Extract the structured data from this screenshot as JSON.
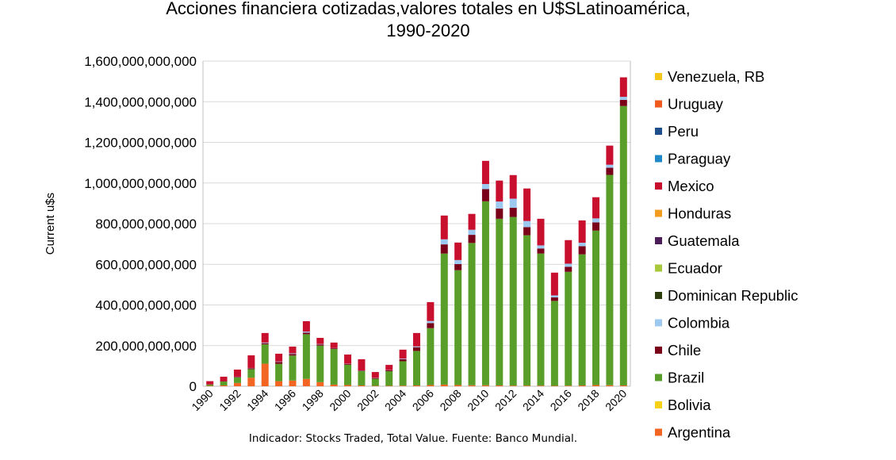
{
  "chart_data": {
    "type": "bar",
    "stacked": true,
    "title": "Acciones financiera cotizadas,valores totales en U$SLatinoamérica,",
    "title_line2": "1990-2020",
    "ylabel": "Current u$s",
    "xlabel": "",
    "caption": "Indicador: Stocks Traded, Total Value. Fuente: Banco Mundial.",
    "ylim": [
      0,
      1600000000000
    ],
    "yticks": [
      0,
      200000000000,
      400000000000,
      600000000000,
      800000000000,
      1000000000000,
      1200000000000,
      1400000000000,
      1600000000000
    ],
    "ytick_labels": [
      "0",
      "200,000,000,000",
      "400,000,000,000",
      "600,000,000,000",
      "800,000,000,000",
      "1,000,000,000,000",
      "1,200,000,000,000",
      "1,400,000,000,000",
      "1,600,000,000,000"
    ],
    "grid": true,
    "legend_position": "right",
    "categories": [
      1990,
      1991,
      1992,
      1993,
      1994,
      1995,
      1996,
      1997,
      1998,
      1999,
      2000,
      2001,
      2002,
      2003,
      2004,
      2005,
      2006,
      2007,
      2008,
      2009,
      2010,
      2011,
      2012,
      2013,
      2014,
      2015,
      2016,
      2017,
      2018,
      2019,
      2020
    ],
    "xtick_labels": [
      "1990",
      "1992",
      "1994",
      "1996",
      "1998",
      "2000",
      "2002",
      "2004",
      "2006",
      "2008",
      "2010",
      "2012",
      "2014",
      "2016",
      "2018",
      "2020"
    ],
    "series": [
      {
        "name": "Argentina",
        "color": "#f26522",
        "values": [
          2000000000.0,
          4000000000.0,
          16000000000.0,
          42000000000.0,
          111000000000.0,
          25000000000.0,
          28000000000.0,
          36000000000.0,
          20000000000.0,
          8000000000.0,
          6000000000.0,
          4000000000.0,
          2000000000.0,
          2000000000.0,
          3000000000.0,
          4000000000.0,
          6000000000.0,
          8000000000.0,
          6000000000.0,
          5000000000.0,
          5000000000.0,
          4000000000.0,
          3000000000.0,
          3000000000.0,
          3000000000.0,
          2000000000.0,
          3000000000.0,
          4000000000.0,
          6000000000.0,
          5000000000.0,
          4000000000.0
        ]
      },
      {
        "name": "Bolivia",
        "color": "#f7d018",
        "values": [
          0,
          0,
          0,
          0,
          0,
          0,
          0,
          0,
          0,
          0,
          0,
          0,
          0,
          0,
          0,
          0,
          0,
          0,
          0,
          0,
          0,
          0,
          0,
          0,
          0,
          0,
          0,
          0,
          0,
          0,
          0
        ]
      },
      {
        "name": "Brazil",
        "color": "#5a9e2a",
        "values": [
          6000000000.0,
          19000000000.0,
          27000000000.0,
          42000000000.0,
          95000000000.0,
          85000000000.0,
          123000000000.0,
          220000000000.0,
          180000000000.0,
          175000000000.0,
          100000000000.0,
          70000000000.0,
          35000000000.0,
          72000000000.0,
          120000000000.0,
          170000000000.0,
          280000000000.0,
          645000000000.0,
          565000000000.0,
          700000000000.0,
          905000000000.0,
          820000000000.0,
          830000000000.0,
          740000000000.0,
          650000000000.0,
          418000000000.0,
          560000000000.0,
          645000000000.0,
          760000000000.0,
          1035000000000.0,
          1375000000000.0
        ]
      },
      {
        "name": "Chile",
        "color": "#7a0019",
        "values": [
          1000000000.0,
          2000000000.0,
          3000000000.0,
          5000000000.0,
          6000000000.0,
          10000000000.0,
          8000000000.0,
          8000000000.0,
          6000000000.0,
          4000000000.0,
          4000000000.0,
          3000000000.0,
          3000000000.0,
          5000000000.0,
          10000000000.0,
          18000000000.0,
          25000000000.0,
          45000000000.0,
          30000000000.0,
          40000000000.0,
          60000000000.0,
          50000000000.0,
          45000000000.0,
          40000000000.0,
          25000000000.0,
          17000000000.0,
          25000000000.0,
          40000000000.0,
          40000000000.0,
          35000000000.0,
          30000000000.0
        ]
      },
      {
        "name": "Colombia",
        "color": "#9dc8f0",
        "values": [
          0,
          0,
          1000000000.0,
          1000000000.0,
          3000000000.0,
          2000000000.0,
          3000000000.0,
          5000000000.0,
          2000000000.0,
          1000000000.0,
          1000000000.0,
          1000000000.0,
          1000000000.0,
          1000000000.0,
          3000000000.0,
          4000000000.0,
          10000000000.0,
          25000000000.0,
          20000000000.0,
          25000000000.0,
          25000000000.0,
          35000000000.0,
          45000000000.0,
          30000000000.0,
          15000000000.0,
          10000000000.0,
          15000000000.0,
          17000000000.0,
          20000000000.0,
          15000000000.0,
          15000000000.0
        ]
      },
      {
        "name": "Dominican Republic",
        "color": "#2e3d0e",
        "values": [
          0,
          0,
          0,
          0,
          0,
          0,
          0,
          0,
          0,
          0,
          0,
          0,
          0,
          0,
          0,
          0,
          0,
          0,
          0,
          0,
          0,
          0,
          0,
          0,
          0,
          0,
          0,
          0,
          0,
          0,
          0
        ]
      },
      {
        "name": "Ecuador",
        "color": "#a8c83c",
        "values": [
          0,
          0,
          0,
          0,
          0,
          0,
          0,
          0,
          0,
          0,
          0,
          0,
          0,
          0,
          0,
          0,
          0,
          0,
          0,
          0,
          0,
          0,
          0,
          0,
          0,
          0,
          0,
          0,
          0,
          0,
          0
        ]
      },
      {
        "name": "Guatemala",
        "color": "#4b1e5a",
        "values": [
          0,
          0,
          0,
          0,
          0,
          0,
          0,
          0,
          0,
          0,
          0,
          0,
          0,
          0,
          0,
          0,
          0,
          0,
          0,
          0,
          0,
          0,
          0,
          0,
          0,
          0,
          0,
          0,
          0,
          0,
          0
        ]
      },
      {
        "name": "Honduras",
        "color": "#f39c20",
        "values": [
          0,
          0,
          0,
          0,
          0,
          0,
          0,
          0,
          0,
          0,
          0,
          0,
          0,
          0,
          0,
          0,
          0,
          0,
          0,
          0,
          0,
          0,
          0,
          0,
          0,
          0,
          0,
          0,
          0,
          0,
          0
        ]
      },
      {
        "name": "Mexico",
        "color": "#c8102e",
        "values": [
          16000000000.0,
          22000000000.0,
          35000000000.0,
          62000000000.0,
          47000000000.0,
          38000000000.0,
          33000000000.0,
          51000000000.0,
          30000000000.0,
          27000000000.0,
          45000000000.0,
          55000000000.0,
          29000000000.0,
          25000000000.0,
          44000000000.0,
          66000000000.0,
          93000000000.0,
          117000000000.0,
          86000000000.0,
          78000000000.0,
          114000000000.0,
          103000000000.0,
          116000000000.0,
          160000000000.0,
          131000000000.0,
          112000000000.0,
          116000000000.0,
          110000000000.0,
          104000000000.0,
          94000000000.0,
          96000000000.0
        ]
      },
      {
        "name": "Paraguay",
        "color": "#1e88c8",
        "values": [
          0,
          0,
          0,
          0,
          0,
          0,
          0,
          0,
          0,
          0,
          0,
          0,
          0,
          0,
          0,
          0,
          0,
          0,
          0,
          0,
          0,
          0,
          0,
          0,
          0,
          0,
          0,
          0,
          0,
          0,
          0
        ]
      },
      {
        "name": "Peru",
        "color": "#1f4e8c",
        "values": [
          0,
          0,
          0,
          0,
          0,
          0,
          0,
          0,
          0,
          0,
          0,
          0,
          0,
          0,
          0,
          0,
          0,
          0,
          0,
          0,
          0,
          0,
          0,
          0,
          0,
          0,
          0,
          0,
          0,
          0,
          0
        ]
      },
      {
        "name": "Uruguay",
        "color": "#f05a1e",
        "values": [
          0,
          0,
          0,
          0,
          0,
          0,
          0,
          0,
          0,
          0,
          0,
          0,
          0,
          0,
          0,
          0,
          0,
          0,
          0,
          0,
          0,
          0,
          0,
          0,
          0,
          0,
          0,
          0,
          0,
          0,
          0
        ]
      },
      {
        "name": "Venezuela, RB",
        "color": "#f5c518",
        "values": [
          0,
          0,
          0,
          0,
          0,
          0,
          0,
          0,
          0,
          0,
          0,
          0,
          0,
          0,
          0,
          0,
          0,
          0,
          0,
          0,
          0,
          0,
          0,
          0,
          0,
          0,
          0,
          0,
          0,
          0,
          0
        ]
      }
    ]
  }
}
